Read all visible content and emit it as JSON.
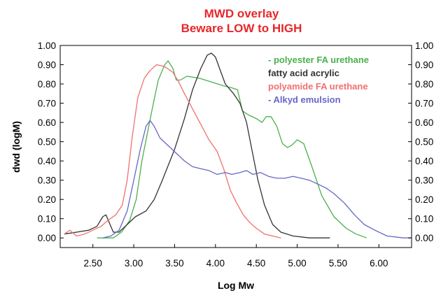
{
  "chart_data": {
    "type": "line",
    "title": "MWD overlay",
    "subtitle": "Beware LOW to HIGH",
    "xlabel": "Log Mw",
    "ylabel": "dwd (logM)",
    "xlim": [
      2.1,
      6.4
    ],
    "ylim": [
      -0.05,
      1.0
    ],
    "xticks": [
      "2.50",
      "3.00",
      "3.50",
      "4.00",
      "4.50",
      "5.00",
      "5.50",
      "6.00"
    ],
    "yticks": [
      "0.00",
      "0.10",
      "0.20",
      "0.30",
      "0.40",
      "0.50",
      "0.60",
      "0.70",
      "0.80",
      "0.90",
      "1.00"
    ],
    "legend_position": "top-right",
    "grid": false,
    "series": [
      {
        "name": "- polyester FA urethane",
        "color": "#4cb04c",
        "points": [
          [
            2.55,
            0.0
          ],
          [
            2.75,
            0.0
          ],
          [
            2.85,
            0.03
          ],
          [
            2.95,
            0.09
          ],
          [
            3.03,
            0.2
          ],
          [
            3.1,
            0.4
          ],
          [
            3.17,
            0.55
          ],
          [
            3.24,
            0.7
          ],
          [
            3.3,
            0.82
          ],
          [
            3.38,
            0.9
          ],
          [
            3.42,
            0.92
          ],
          [
            3.48,
            0.88
          ],
          [
            3.52,
            0.82
          ],
          [
            3.57,
            0.82
          ],
          [
            3.65,
            0.84
          ],
          [
            3.8,
            0.83
          ],
          [
            3.95,
            0.81
          ],
          [
            4.1,
            0.79
          ],
          [
            4.2,
            0.78
          ],
          [
            4.27,
            0.77
          ],
          [
            4.33,
            0.66
          ],
          [
            4.4,
            0.64
          ],
          [
            4.5,
            0.62
          ],
          [
            4.57,
            0.6
          ],
          [
            4.62,
            0.63
          ],
          [
            4.68,
            0.63
          ],
          [
            4.75,
            0.58
          ],
          [
            4.82,
            0.49
          ],
          [
            4.88,
            0.47
          ],
          [
            4.93,
            0.48
          ],
          [
            5.0,
            0.51
          ],
          [
            5.08,
            0.49
          ],
          [
            5.18,
            0.37
          ],
          [
            5.3,
            0.22
          ],
          [
            5.45,
            0.11
          ],
          [
            5.6,
            0.05
          ],
          [
            5.72,
            0.02
          ],
          [
            5.85,
            0.0
          ]
        ]
      },
      {
        "name": "fatty acid acrylic",
        "color": "#333333",
        "points": [
          [
            2.15,
            0.02
          ],
          [
            2.3,
            0.03
          ],
          [
            2.45,
            0.04
          ],
          [
            2.55,
            0.06
          ],
          [
            2.62,
            0.11
          ],
          [
            2.66,
            0.12
          ],
          [
            2.7,
            0.08
          ],
          [
            2.75,
            0.03
          ],
          [
            2.82,
            0.03
          ],
          [
            2.92,
            0.07
          ],
          [
            3.02,
            0.11
          ],
          [
            3.15,
            0.14
          ],
          [
            3.25,
            0.2
          ],
          [
            3.35,
            0.3
          ],
          [
            3.5,
            0.46
          ],
          [
            3.62,
            0.62
          ],
          [
            3.72,
            0.77
          ],
          [
            3.82,
            0.88
          ],
          [
            3.9,
            0.95
          ],
          [
            3.95,
            0.96
          ],
          [
            4.0,
            0.94
          ],
          [
            4.05,
            0.88
          ],
          [
            4.12,
            0.8
          ],
          [
            4.22,
            0.75
          ],
          [
            4.3,
            0.7
          ],
          [
            4.38,
            0.6
          ],
          [
            4.45,
            0.45
          ],
          [
            4.52,
            0.3
          ],
          [
            4.6,
            0.17
          ],
          [
            4.7,
            0.07
          ],
          [
            4.8,
            0.03
          ],
          [
            4.95,
            0.01
          ],
          [
            5.15,
            0.0
          ],
          [
            5.4,
            0.0
          ]
        ]
      },
      {
        "name": "polyamide FA urethane",
        "color": "#f07070",
        "points": [
          [
            2.15,
            0.02
          ],
          [
            2.22,
            0.04
          ],
          [
            2.3,
            0.01
          ],
          [
            2.4,
            0.02
          ],
          [
            2.5,
            0.04
          ],
          [
            2.6,
            0.06
          ],
          [
            2.68,
            0.09
          ],
          [
            2.78,
            0.12
          ],
          [
            2.86,
            0.17
          ],
          [
            2.92,
            0.3
          ],
          [
            2.98,
            0.52
          ],
          [
            3.05,
            0.73
          ],
          [
            3.13,
            0.83
          ],
          [
            3.2,
            0.87
          ],
          [
            3.28,
            0.9
          ],
          [
            3.38,
            0.89
          ],
          [
            3.48,
            0.86
          ],
          [
            3.55,
            0.81
          ],
          [
            3.62,
            0.75
          ],
          [
            3.72,
            0.67
          ],
          [
            3.82,
            0.59
          ],
          [
            3.92,
            0.51
          ],
          [
            4.02,
            0.45
          ],
          [
            4.1,
            0.36
          ],
          [
            4.18,
            0.25
          ],
          [
            4.26,
            0.18
          ],
          [
            4.34,
            0.12
          ],
          [
            4.42,
            0.08
          ],
          [
            4.5,
            0.05
          ],
          [
            4.6,
            0.02
          ],
          [
            4.7,
            0.01
          ],
          [
            4.8,
            0.0
          ]
        ]
      },
      {
        "name": "- Alkyd emulsion",
        "color": "#6666c8",
        "points": [
          [
            2.62,
            0.0
          ],
          [
            2.72,
            0.01
          ],
          [
            2.82,
            0.04
          ],
          [
            2.92,
            0.14
          ],
          [
            3.0,
            0.3
          ],
          [
            3.08,
            0.46
          ],
          [
            3.15,
            0.58
          ],
          [
            3.2,
            0.61
          ],
          [
            3.25,
            0.58
          ],
          [
            3.32,
            0.52
          ],
          [
            3.42,
            0.48
          ],
          [
            3.52,
            0.44
          ],
          [
            3.62,
            0.4
          ],
          [
            3.72,
            0.37
          ],
          [
            3.82,
            0.36
          ],
          [
            3.92,
            0.35
          ],
          [
            4.02,
            0.33
          ],
          [
            4.12,
            0.34
          ],
          [
            4.2,
            0.33
          ],
          [
            4.3,
            0.34
          ],
          [
            4.38,
            0.35
          ],
          [
            4.46,
            0.33
          ],
          [
            4.55,
            0.34
          ],
          [
            4.65,
            0.32
          ],
          [
            4.75,
            0.31
          ],
          [
            4.85,
            0.31
          ],
          [
            4.95,
            0.32
          ],
          [
            5.05,
            0.31
          ],
          [
            5.15,
            0.3
          ],
          [
            5.25,
            0.28
          ],
          [
            5.35,
            0.26
          ],
          [
            5.45,
            0.23
          ],
          [
            5.58,
            0.18
          ],
          [
            5.7,
            0.12
          ],
          [
            5.82,
            0.07
          ],
          [
            5.95,
            0.04
          ],
          [
            6.1,
            0.01
          ],
          [
            6.3,
            0.0
          ],
          [
            6.4,
            0.0
          ]
        ]
      }
    ]
  }
}
